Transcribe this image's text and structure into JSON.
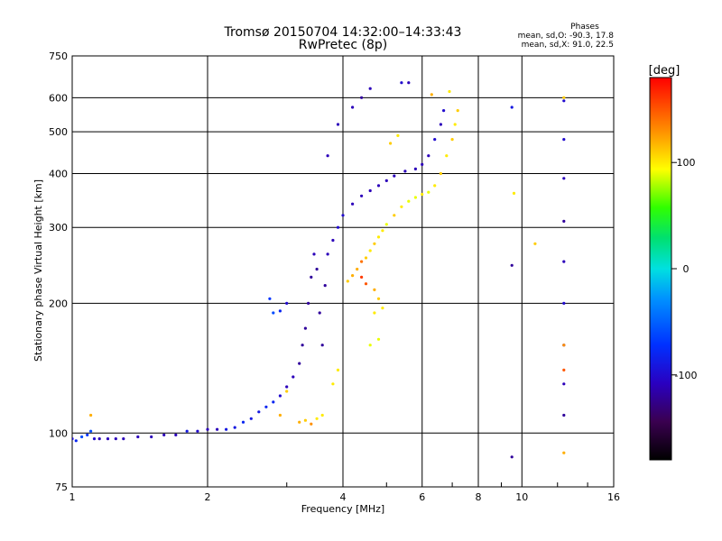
{
  "chart_data": {
    "type": "scatter",
    "title": "Tromsø 20150704 14:32:00–14:33:43",
    "subtitle": "RwPretec (8p)",
    "xlabel": "Frequency [MHz]",
    "ylabel": "Stationary phase Virtual Height [km]",
    "x_scale": "log",
    "y_scale": "log",
    "xlim": [
      1,
      16
    ],
    "ylim": [
      75,
      750
    ],
    "x_ticks": [
      "1",
      "2",
      "4",
      "6",
      "8",
      "10",
      "16"
    ],
    "x_tick_values": [
      1,
      2,
      4,
      6,
      8,
      10,
      16
    ],
    "y_ticks": [
      "75",
      "100",
      "200",
      "300",
      "400",
      "500",
      "600",
      "750"
    ],
    "y_tick_values": [
      75,
      100,
      200,
      300,
      400,
      500,
      600,
      750
    ],
    "grid": true,
    "phases_box": {
      "title": "Phases",
      "line_o": "mean, sd,O: -90.3, 17.8",
      "line_x": "mean, sd,X: 91.0, 22.5"
    },
    "colorbar": {
      "label": "[deg]",
      "range": [
        -180,
        180
      ],
      "ticks": [
        "100",
        "0",
        "-100"
      ],
      "tick_values": [
        100,
        0,
        -100
      ]
    },
    "series": [
      {
        "points": [
          [
            1.0,
            97,
            -100
          ],
          [
            1.02,
            96,
            -80
          ],
          [
            1.05,
            98,
            -60
          ],
          [
            1.08,
            99,
            -70
          ],
          [
            1.1,
            101,
            -60
          ],
          [
            1.12,
            97,
            -100
          ],
          [
            1.15,
            97,
            -110
          ],
          [
            1.2,
            97,
            -110
          ],
          [
            1.25,
            97,
            -110
          ],
          [
            1.3,
            97,
            -110
          ],
          [
            1.4,
            98,
            -110
          ],
          [
            1.5,
            98,
            -110
          ],
          [
            1.6,
            99,
            -110
          ],
          [
            1.7,
            99,
            -110
          ],
          [
            1.8,
            101,
            -90
          ],
          [
            1.9,
            101,
            -100
          ],
          [
            2.0,
            102,
            -110
          ],
          [
            2.1,
            102,
            -110
          ],
          [
            2.2,
            102,
            -90
          ],
          [
            2.3,
            103,
            -90
          ],
          [
            2.4,
            106,
            -80
          ],
          [
            2.5,
            108,
            -90
          ],
          [
            2.6,
            112,
            -90
          ],
          [
            2.7,
            115,
            -80
          ],
          [
            2.8,
            118,
            -80
          ],
          [
            2.9,
            122,
            -100
          ],
          [
            3.0,
            128,
            -110
          ],
          [
            3.1,
            135,
            -110
          ],
          [
            3.2,
            145,
            -120
          ],
          [
            3.25,
            160,
            -120
          ],
          [
            3.3,
            175,
            -120
          ],
          [
            3.35,
            200,
            -120
          ],
          [
            3.4,
            230,
            -120
          ],
          [
            3.45,
            260,
            -110
          ],
          [
            3.5,
            240,
            -120
          ],
          [
            3.55,
            190,
            -120
          ],
          [
            3.6,
            160,
            -120
          ],
          [
            3.65,
            220,
            -120
          ],
          [
            3.7,
            260,
            -110
          ],
          [
            3.8,
            280,
            -110
          ],
          [
            3.9,
            300,
            -100
          ],
          [
            4.0,
            320,
            -100
          ],
          [
            4.2,
            340,
            -110
          ],
          [
            4.4,
            355,
            -110
          ],
          [
            4.6,
            365,
            -110
          ],
          [
            4.8,
            375,
            -110
          ],
          [
            5.0,
            385,
            -110
          ],
          [
            5.2,
            395,
            -110
          ],
          [
            5.5,
            405,
            -110
          ],
          [
            5.8,
            410,
            -110
          ],
          [
            6.0,
            420,
            -110
          ],
          [
            6.2,
            440,
            -110
          ],
          [
            6.4,
            480,
            -100
          ],
          [
            6.6,
            520,
            -110
          ],
          [
            6.7,
            560,
            -100
          ],
          [
            2.8,
            190,
            -60
          ],
          [
            2.75,
            205,
            -70
          ],
          [
            2.9,
            192,
            -80
          ],
          [
            3.0,
            200,
            -100
          ],
          [
            3.7,
            440,
            -110
          ],
          [
            3.9,
            520,
            -110
          ],
          [
            4.2,
            570,
            -110
          ],
          [
            4.4,
            600,
            -120
          ],
          [
            4.6,
            630,
            -110
          ],
          [
            5.4,
            650,
            -100
          ],
          [
            5.6,
            650,
            -110
          ],
          [
            9.5,
            570,
            -90
          ],
          [
            9.5,
            245,
            -120
          ],
          [
            9.5,
            88,
            -120
          ],
          [
            12.4,
            590,
            -100
          ],
          [
            12.4,
            480,
            -100
          ],
          [
            12.4,
            390,
            -110
          ],
          [
            12.4,
            310,
            -120
          ],
          [
            12.4,
            250,
            -110
          ],
          [
            12.4,
            200,
            -100
          ],
          [
            12.4,
            160,
            -100
          ],
          [
            12.4,
            130,
            -110
          ],
          [
            12.4,
            110,
            -120
          ]
        ]
      },
      {
        "points": [
          [
            4.3,
            240,
            120
          ],
          [
            4.4,
            250,
            140
          ],
          [
            4.5,
            255,
            110
          ],
          [
            4.6,
            265,
            100
          ],
          [
            4.7,
            275,
            110
          ],
          [
            4.8,
            285,
            100
          ],
          [
            4.9,
            295,
            100
          ],
          [
            5.0,
            305,
            90
          ],
          [
            5.2,
            320,
            110
          ],
          [
            5.4,
            335,
            100
          ],
          [
            5.6,
            345,
            90
          ],
          [
            5.8,
            352,
            90
          ],
          [
            6.0,
            358,
            100
          ],
          [
            6.2,
            362,
            90
          ],
          [
            6.4,
            375,
            100
          ],
          [
            6.6,
            400,
            110
          ],
          [
            6.8,
            440,
            100
          ],
          [
            7.0,
            480,
            110
          ],
          [
            7.1,
            520,
            100
          ],
          [
            7.2,
            560,
            110
          ],
          [
            4.4,
            230,
            160
          ],
          [
            4.5,
            222,
            150
          ],
          [
            4.7,
            215,
            120
          ],
          [
            4.8,
            205,
            110
          ],
          [
            4.9,
            195,
            100
          ],
          [
            4.8,
            165,
            90
          ],
          [
            4.6,
            160,
            90
          ],
          [
            4.7,
            190,
            100
          ],
          [
            4.2,
            232,
            120
          ],
          [
            4.1,
            225,
            110
          ],
          [
            3.9,
            140,
            100
          ],
          [
            3.8,
            130,
            100
          ],
          [
            3.3,
            107,
            110
          ],
          [
            3.4,
            105,
            130
          ],
          [
            3.5,
            108,
            100
          ],
          [
            3.6,
            110,
            100
          ],
          [
            3.2,
            106,
            120
          ],
          [
            1.1,
            110,
            120
          ],
          [
            2.9,
            110,
            120
          ],
          [
            3.0,
            125,
            110
          ],
          [
            5.1,
            470,
            110
          ],
          [
            5.3,
            490,
            100
          ],
          [
            9.6,
            360,
            100
          ],
          [
            10.7,
            275,
            110
          ],
          [
            12.4,
            600,
            110
          ],
          [
            12.4,
            160,
            130
          ],
          [
            12.4,
            140,
            150
          ],
          [
            12.4,
            90,
            120
          ],
          [
            6.9,
            620,
            100
          ],
          [
            6.3,
            610,
            120
          ]
        ]
      }
    ]
  }
}
